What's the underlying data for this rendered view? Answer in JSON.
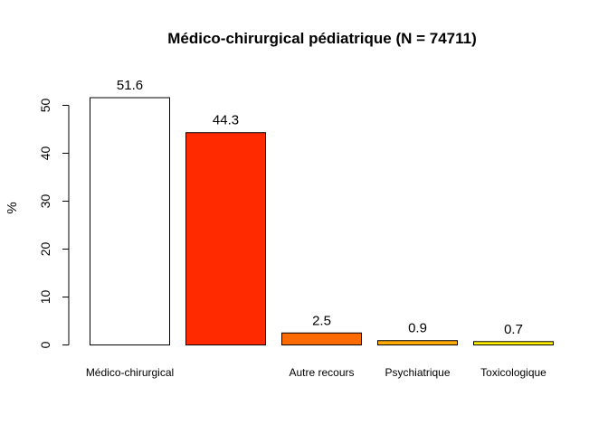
{
  "chart_data": {
    "type": "bar",
    "title": "Médico-chirurgical pédiatrique (N = 74711)",
    "xlabel": "",
    "ylabel": "%",
    "categories": [
      "Médico-chirurgical",
      "",
      "Autre recours",
      "Psychiatrique",
      "Toxicologique"
    ],
    "values": [
      51.6,
      44.3,
      2.5,
      0.9,
      0.7
    ],
    "value_labels": [
      "51.6",
      "44.3",
      "2.5",
      "0.9",
      "0.7"
    ],
    "colors": [
      "#ffffff",
      "#ff2a00",
      "#ff6a00",
      "#ffaa00",
      "#ffee00"
    ],
    "yticks": [
      0,
      10,
      20,
      30,
      40,
      50
    ],
    "ylim": [
      0,
      54
    ],
    "grid": false,
    "legend": "none"
  }
}
